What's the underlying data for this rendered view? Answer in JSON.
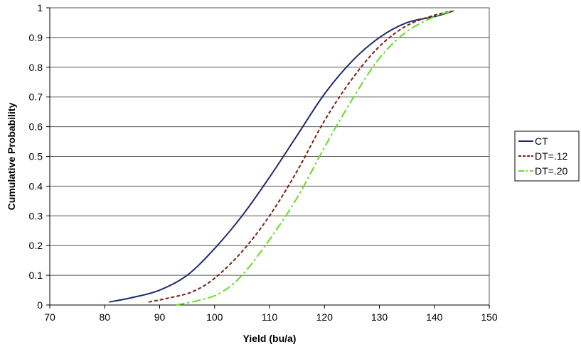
{
  "chart_data": {
    "type": "line",
    "title": "",
    "xlabel": "Yield (bu/a)",
    "ylabel": "Cumulative Probability",
    "xlim": [
      70,
      150
    ],
    "ylim": [
      0,
      1
    ],
    "x_ticks": [
      "70",
      "80",
      "90",
      "100",
      "110",
      "120",
      "130",
      "140",
      "150"
    ],
    "y_ticks": [
      "0",
      "0.1",
      "0.2",
      "0.3",
      "0.4",
      "0.5",
      "0.6",
      "0.7",
      "0.8",
      "0.9",
      "1"
    ],
    "grid": "horizontal",
    "legend_position": "right",
    "series": [
      {
        "name": "CT",
        "color": "#1f2a6e",
        "dash": "solid",
        "points": [
          [
            80.8,
            0.01
          ],
          [
            85,
            0.025
          ],
          [
            90,
            0.05
          ],
          [
            95,
            0.1
          ],
          [
            100,
            0.19
          ],
          [
            105,
            0.3
          ],
          [
            110,
            0.43
          ],
          [
            115,
            0.57
          ],
          [
            120,
            0.71
          ],
          [
            125,
            0.82
          ],
          [
            130,
            0.9
          ],
          [
            135,
            0.95
          ],
          [
            140,
            0.97
          ],
          [
            143.6,
            0.99
          ]
        ]
      },
      {
        "name": "DT=.12",
        "color": "#7a1e14",
        "dash": "dashed",
        "points": [
          [
            88,
            0.01
          ],
          [
            92,
            0.025
          ],
          [
            96,
            0.045
          ],
          [
            100,
            0.09
          ],
          [
            105,
            0.18
          ],
          [
            110,
            0.3
          ],
          [
            115,
            0.45
          ],
          [
            120,
            0.62
          ],
          [
            125,
            0.76
          ],
          [
            130,
            0.87
          ],
          [
            135,
            0.94
          ],
          [
            140,
            0.975
          ],
          [
            143.6,
            0.99
          ]
        ]
      },
      {
        "name": "DT=.20",
        "color": "#66dd22",
        "dash": "dashdot",
        "points": [
          [
            93,
            0.0
          ],
          [
            97,
            0.015
          ],
          [
            101,
            0.04
          ],
          [
            105,
            0.1
          ],
          [
            110,
            0.22
          ],
          [
            115,
            0.36
          ],
          [
            120,
            0.53
          ],
          [
            125,
            0.69
          ],
          [
            130,
            0.83
          ],
          [
            135,
            0.92
          ],
          [
            140,
            0.97
          ],
          [
            143.6,
            0.99
          ]
        ]
      }
    ]
  }
}
